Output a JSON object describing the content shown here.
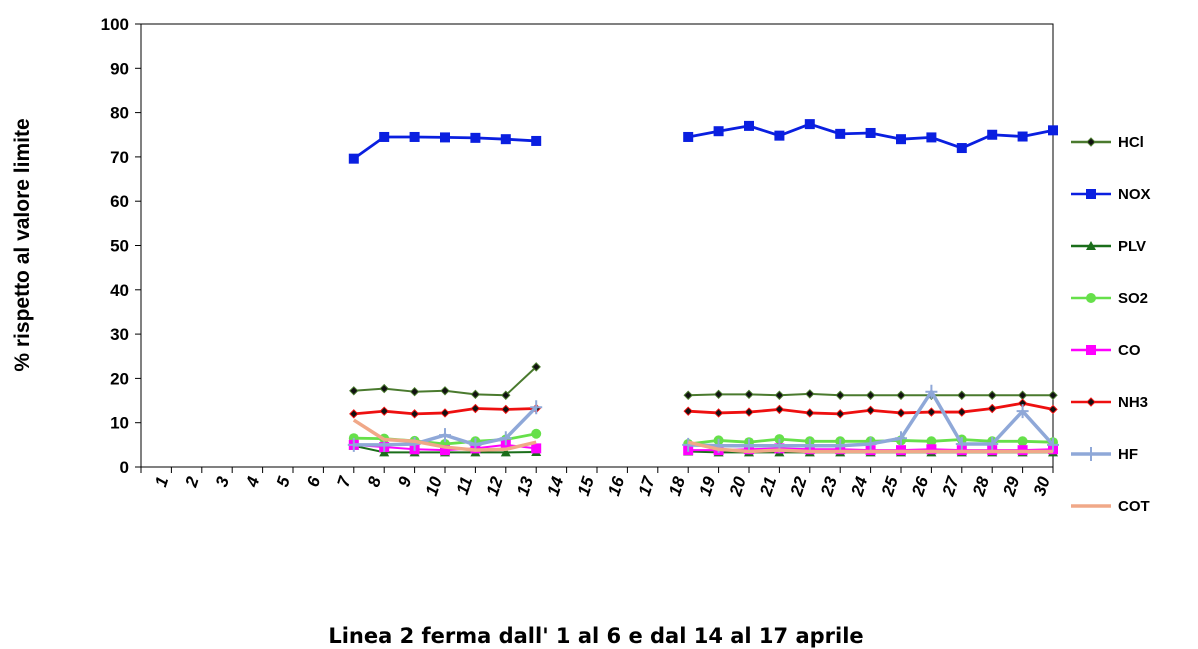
{
  "chart_data": {
    "type": "line",
    "xlabel": "Linea 2 ferma dall' 1 al 6  e dal 14 al 17 aprile",
    "ylabel": "% rispetto al valore limite",
    "ylim": [
      0,
      100
    ],
    "yticks": [
      "0",
      "10",
      "20",
      "30",
      "40",
      "50",
      "60",
      "70",
      "80",
      "90",
      "100"
    ],
    "categories": [
      "1",
      "2",
      "3",
      "4",
      "5",
      "6",
      "7",
      "8",
      "9",
      "10",
      "11",
      "12",
      "13",
      "14",
      "15",
      "16",
      "17",
      "18",
      "19",
      "20",
      "21",
      "22",
      "23",
      "24",
      "25",
      "26",
      "27",
      "28",
      "29",
      "30"
    ],
    "grid": false,
    "legend_position": "right",
    "series": [
      {
        "name": "HCl",
        "color": "#4a7a2e",
        "marker": "diamond",
        "values": [
          null,
          null,
          null,
          null,
          null,
          null,
          17.2,
          17.7,
          17.0,
          17.2,
          16.4,
          16.2,
          22.6,
          null,
          null,
          null,
          null,
          16.2,
          16.4,
          16.4,
          16.2,
          16.5,
          16.2,
          16.2,
          16.2,
          16.2,
          16.2,
          16.2,
          16.2,
          16.2
        ]
      },
      {
        "name": "NOX",
        "color": "#0a1fe0",
        "marker": "square",
        "values": [
          null,
          null,
          null,
          null,
          null,
          null,
          69.6,
          74.5,
          74.5,
          74.4,
          74.3,
          74.0,
          73.6,
          null,
          null,
          null,
          null,
          74.5,
          75.8,
          77.0,
          74.8,
          77.4,
          75.2,
          75.4,
          74.0,
          74.4,
          72.0,
          75.0,
          74.6,
          76.0
        ]
      },
      {
        "name": "PLV",
        "color": "#1a6e1a",
        "marker": "triangle",
        "values": [
          null,
          null,
          null,
          null,
          null,
          null,
          4.8,
          3.3,
          3.3,
          3.3,
          3.3,
          3.3,
          3.4,
          null,
          null,
          null,
          null,
          3.5,
          3.3,
          3.3,
          3.3,
          3.3,
          3.3,
          3.3,
          3.3,
          3.3,
          3.3,
          3.3,
          3.3,
          3.3
        ]
      },
      {
        "name": "SO2",
        "color": "#66e04a",
        "marker": "circle",
        "values": [
          null,
          null,
          null,
          null,
          null,
          null,
          6.5,
          6.4,
          5.9,
          5.2,
          5.8,
          6.2,
          7.5,
          null,
          null,
          null,
          null,
          5.2,
          6.0,
          5.6,
          6.3,
          5.8,
          5.8,
          5.8,
          6.0,
          5.8,
          6.2,
          5.8,
          5.8,
          5.6
        ]
      },
      {
        "name": "CO",
        "color": "#ff00ff",
        "marker": "square",
        "values": [
          null,
          null,
          null,
          null,
          null,
          null,
          5.0,
          4.5,
          4.0,
          3.8,
          4.2,
          5.0,
          4.2,
          null,
          null,
          null,
          null,
          3.8,
          3.8,
          4.0,
          4.2,
          4.0,
          4.0,
          3.8,
          3.8,
          4.0,
          3.8,
          3.8,
          3.8,
          4.0
        ]
      },
      {
        "name": "NH3",
        "color": "#ee1010",
        "marker": "diamond",
        "values": [
          null,
          null,
          null,
          null,
          null,
          null,
          12.0,
          12.6,
          12.0,
          12.2,
          13.2,
          13.0,
          13.2,
          null,
          null,
          null,
          null,
          12.6,
          12.2,
          12.4,
          13.0,
          12.2,
          12.0,
          12.8,
          12.2,
          12.4,
          12.4,
          13.2,
          14.4,
          13.0
        ]
      },
      {
        "name": "HF",
        "color": "#8fa8d8",
        "marker": "star",
        "values": [
          null,
          null,
          null,
          null,
          null,
          null,
          5.0,
          5.0,
          5.2,
          7.2,
          5.0,
          6.5,
          13.5,
          null,
          null,
          null,
          null,
          5.0,
          4.8,
          4.8,
          4.8,
          4.8,
          4.8,
          5.2,
          6.5,
          17.0,
          5.2,
          5.2,
          12.6,
          5.0
        ]
      },
      {
        "name": "COT",
        "color": "#f0a888",
        "marker": "none",
        "values": [
          null,
          null,
          null,
          null,
          null,
          null,
          10.6,
          6.2,
          5.8,
          4.5,
          3.8,
          4.0,
          5.6,
          null,
          null,
          null,
          null,
          5.6,
          4.0,
          3.5,
          3.8,
          3.5,
          3.5,
          3.5,
          3.5,
          3.5,
          3.5,
          3.5,
          3.5,
          3.5
        ]
      }
    ]
  }
}
